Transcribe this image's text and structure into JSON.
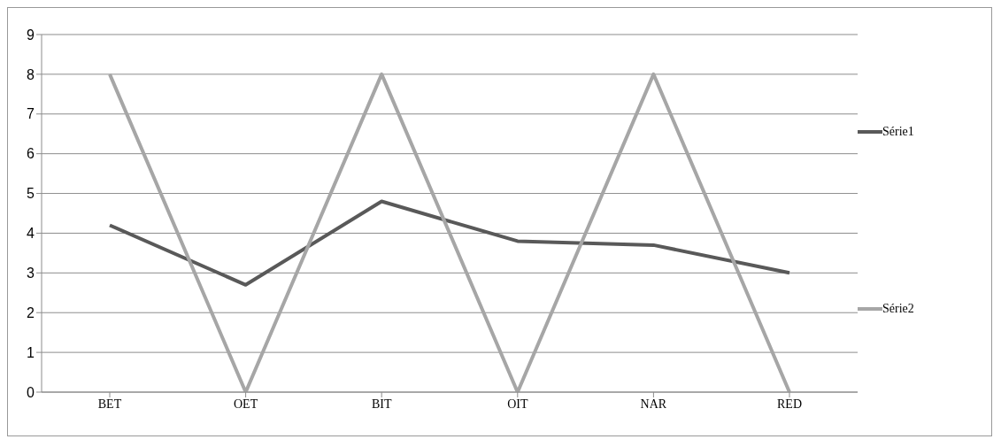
{
  "chart_data": {
    "type": "line",
    "categories": [
      "BET",
      "OET",
      "BIT",
      "OIT",
      "NAR",
      "RED"
    ],
    "series": [
      {
        "name": "Série1",
        "color": "#595959",
        "values": [
          4.2,
          2.7,
          4.8,
          3.8,
          3.7,
          3.0
        ]
      },
      {
        "name": "Série2",
        "color": "#a6a6a6",
        "values": [
          8,
          0,
          8,
          0,
          8,
          0
        ]
      }
    ],
    "ylim": [
      0,
      9
    ],
    "yticks": [
      0,
      1,
      2,
      3,
      4,
      5,
      6,
      7,
      8,
      9
    ],
    "grid": "y",
    "legend": "right",
    "marker": "none",
    "line_style": "solid"
  }
}
